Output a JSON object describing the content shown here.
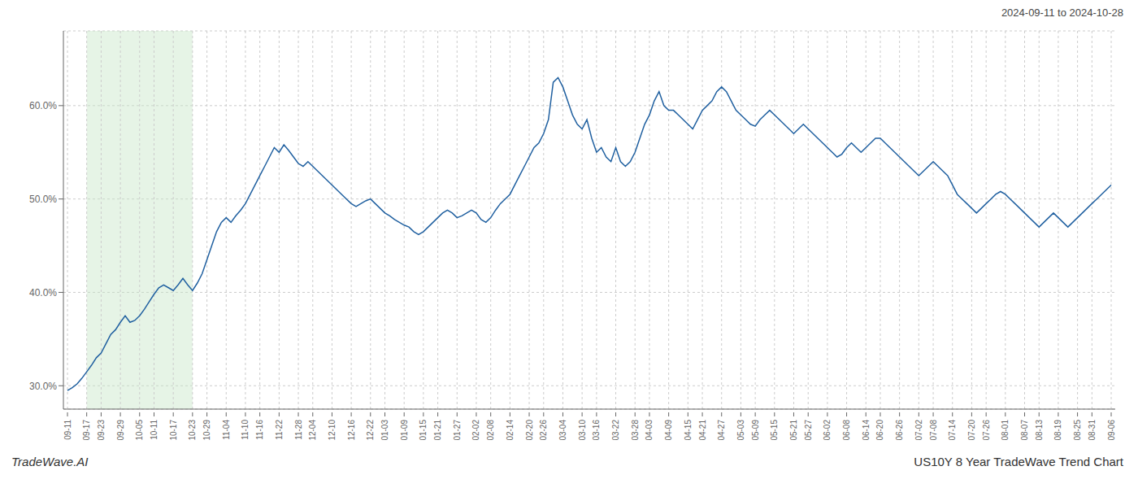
{
  "chart_data": {
    "type": "line",
    "title": "US10Y 8 Year TradeWave Trend Chart",
    "subtitle": "2024-09-11 to 2024-10-28",
    "annotations": [
      "TradeWave.AI"
    ],
    "categories": [
      "09-11",
      null,
      null,
      null,
      "09-17",
      null,
      null,
      "09-23",
      null,
      null,
      null,
      "09-29",
      null,
      null,
      null,
      "10-05",
      null,
      null,
      "10-11",
      null,
      null,
      null,
      "10-17",
      null,
      null,
      null,
      "10-23",
      null,
      null,
      "10-29",
      null,
      null,
      null,
      "11-04",
      null,
      null,
      null,
      "11-10",
      null,
      null,
      "11-16",
      null,
      null,
      null,
      "11-22",
      null,
      null,
      null,
      "11-28",
      null,
      null,
      "12-04",
      null,
      null,
      null,
      "12-10",
      null,
      null,
      null,
      "12-16",
      null,
      null,
      null,
      "12-22",
      null,
      null,
      "01-03",
      null,
      null,
      null,
      "01-09",
      null,
      null,
      null,
      "01-15",
      null,
      null,
      "01-21",
      null,
      null,
      null,
      "01-27",
      null,
      null,
      null,
      "02-02",
      null,
      null,
      "02-08",
      null,
      null,
      null,
      "02-14",
      null,
      null,
      null,
      "02-20",
      null,
      null,
      "02-26",
      null,
      null,
      null,
      "03-04",
      null,
      null,
      null,
      "03-10",
      null,
      null,
      "03-16",
      null,
      null,
      null,
      "03-22",
      null,
      null,
      null,
      "03-28",
      null,
      null,
      "04-03",
      null,
      null,
      null,
      "04-09",
      null,
      null,
      null,
      "04-15",
      null,
      null,
      "04-21",
      null,
      null,
      null,
      "04-27",
      null,
      null,
      null,
      "05-03",
      null,
      null,
      "05-09",
      null,
      null,
      null,
      "05-15",
      null,
      null,
      null,
      "05-21",
      null,
      null,
      "05-27",
      null,
      null,
      null,
      "06-02",
      null,
      null,
      null,
      "06-08",
      null,
      null,
      null,
      "06-14",
      null,
      null,
      "06-20",
      null,
      null,
      null,
      "06-26",
      null,
      null,
      null,
      "07-02",
      null,
      null,
      "07-08",
      null,
      null,
      null,
      "07-14",
      null,
      null,
      null,
      "07-20",
      null,
      null,
      "07-26",
      null,
      null,
      null,
      "08-01",
      null,
      null,
      null,
      "08-07",
      null,
      null,
      "08-13",
      null,
      null,
      null,
      "08-19",
      null,
      null,
      null,
      "08-25",
      null,
      null,
      "08-31",
      null,
      null,
      null,
      "09-06"
    ],
    "values": [
      29.5,
      29.8,
      30.2,
      30.8,
      31.5,
      32.2,
      33.0,
      33.5,
      34.5,
      35.5,
      36.0,
      36.8,
      37.5,
      36.8,
      37.0,
      37.5,
      38.2,
      39.0,
      39.8,
      40.5,
      40.8,
      40.5,
      40.2,
      40.8,
      41.5,
      40.8,
      40.2,
      41.0,
      42.0,
      43.5,
      45.0,
      46.5,
      47.5,
      48.0,
      47.5,
      48.2,
      48.8,
      49.5,
      50.5,
      51.5,
      52.5,
      53.5,
      54.5,
      55.5,
      55.0,
      55.8,
      55.2,
      54.5,
      53.8,
      53.5,
      54.0,
      53.5,
      53.0,
      52.5,
      52.0,
      51.5,
      51.0,
      50.5,
      50.0,
      49.5,
      49.2,
      49.5,
      49.8,
      50.0,
      49.5,
      49.0,
      48.5,
      48.2,
      47.8,
      47.5,
      47.2,
      47.0,
      46.5,
      46.2,
      46.5,
      47.0,
      47.5,
      48.0,
      48.5,
      48.8,
      48.5,
      48.0,
      48.2,
      48.5,
      48.8,
      48.5,
      47.8,
      47.5,
      48.0,
      48.8,
      49.5,
      50.0,
      50.5,
      51.5,
      52.5,
      53.5,
      54.5,
      55.5,
      56.0,
      57.0,
      58.5,
      62.5,
      63.0,
      62.0,
      60.5,
      59.0,
      58.0,
      57.5,
      58.5,
      56.5,
      55.0,
      55.5,
      54.5,
      54.0,
      55.5,
      54.0,
      53.5,
      54.0,
      55.0,
      56.5,
      58.0,
      59.0,
      60.5,
      61.5,
      60.0,
      59.5,
      59.5,
      59.0,
      58.5,
      58.0,
      57.5,
      58.5,
      59.5,
      60.0,
      60.5,
      61.5,
      62.0,
      61.5,
      60.5,
      59.5,
      59.0,
      58.5,
      58.0,
      57.8,
      58.5,
      59.0,
      59.5,
      59.0,
      58.5,
      58.0,
      57.5,
      57.0,
      57.5,
      58.0,
      57.5,
      57.0,
      56.5,
      56.0,
      55.5,
      55.0,
      54.5,
      54.8,
      55.5,
      56.0,
      55.5,
      55.0,
      55.5,
      56.0,
      56.5,
      56.5,
      56.0,
      55.5,
      55.0,
      54.5,
      54.0,
      53.5,
      53.0,
      52.5,
      53.0,
      53.5,
      54.0,
      53.5,
      53.0,
      52.5,
      51.5,
      50.5,
      50.0,
      49.5,
      49.0,
      48.5,
      49.0,
      49.5,
      50.0,
      50.5,
      50.8,
      50.5,
      50.0,
      49.5,
      49.0,
      48.5,
      48.0,
      47.5,
      47.0,
      47.5,
      48.0,
      48.5,
      48.0,
      47.5,
      47.0,
      47.5,
      48.0,
      48.5,
      49.0,
      49.5,
      50.0,
      50.5,
      51.0,
      51.5
    ],
    "color": "#2060a0",
    "ylim": [
      27.5,
      68.0
    ],
    "yticks": [
      {
        "value": 30.0,
        "label": "30.0%"
      },
      {
        "value": 40.0,
        "label": "40.0%"
      },
      {
        "value": 50.0,
        "label": "50.0%"
      },
      {
        "value": 60.0,
        "label": "60.0%"
      }
    ],
    "grid": true,
    "shaded_range": {
      "from": "09-17",
      "to": "10-23",
      "color": "#c8e6c8"
    }
  }
}
